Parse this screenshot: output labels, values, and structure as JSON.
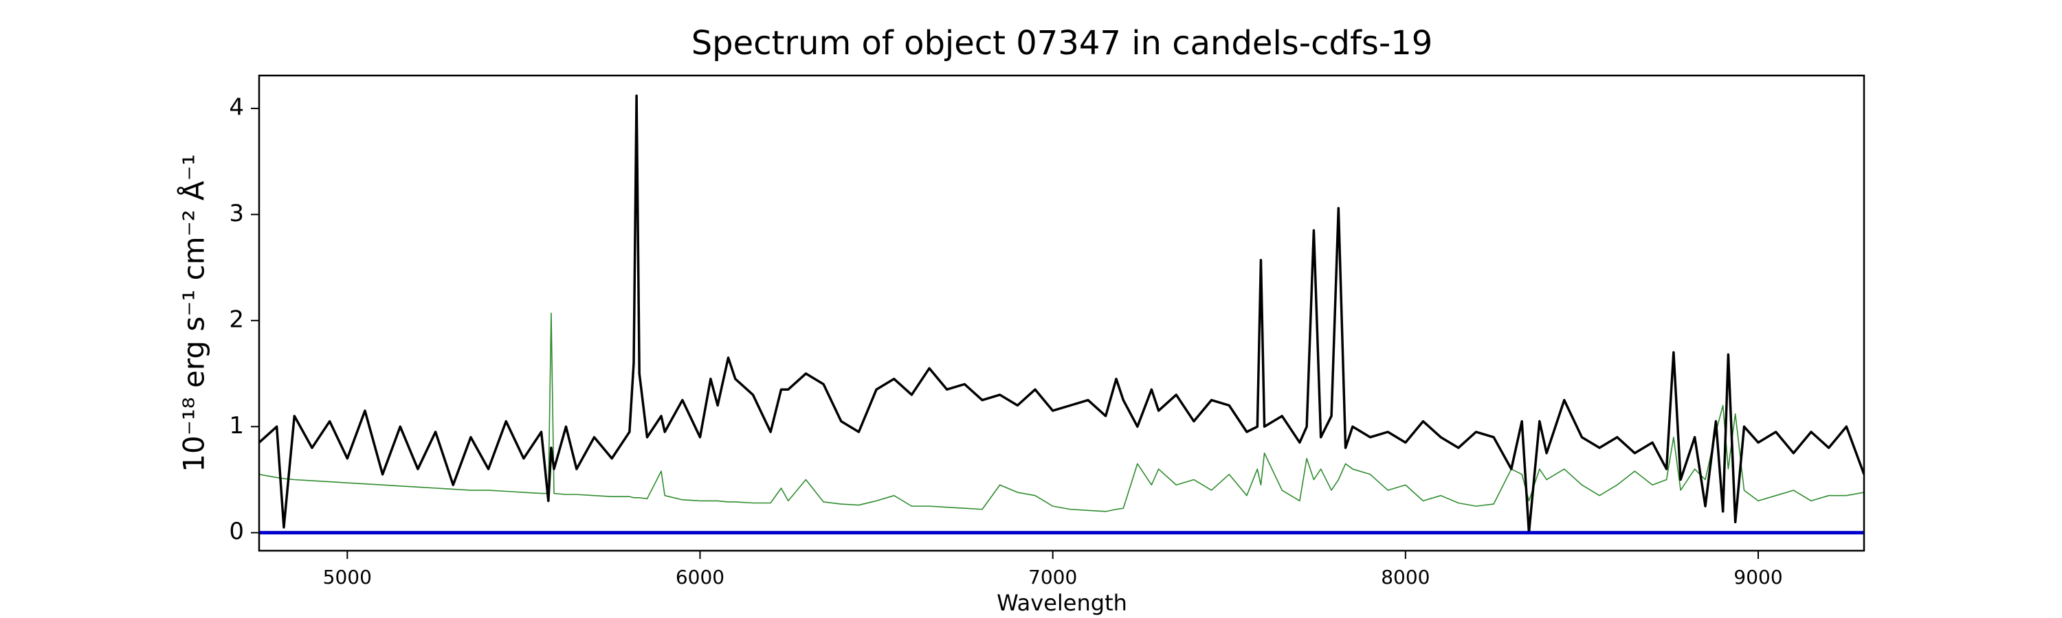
{
  "chart_data": {
    "type": "line",
    "title": "Spectrum of object 07347 in candels-cdfs-19",
    "xlabel": "Wavelength",
    "ylabel": "10⁻¹⁸ erg s⁻¹ cm⁻² Å⁻¹",
    "x": [
      4750,
      4800,
      4820,
      4850,
      4900,
      4950,
      5000,
      5050,
      5100,
      5150,
      5200,
      5250,
      5300,
      5350,
      5400,
      5450,
      5500,
      5550,
      5570,
      5578,
      5586,
      5620,
      5650,
      5700,
      5750,
      5800,
      5812,
      5820,
      5828,
      5850,
      5890,
      5900,
      5950,
      6000,
      6030,
      6050,
      6080,
      6100,
      6150,
      6200,
      6230,
      6250,
      6300,
      6350,
      6400,
      6450,
      6500,
      6550,
      6600,
      6650,
      6700,
      6750,
      6800,
      6850,
      6900,
      6950,
      7000,
      7050,
      7100,
      7150,
      7180,
      7200,
      7240,
      7280,
      7300,
      7350,
      7400,
      7450,
      7500,
      7550,
      7580,
      7590,
      7600,
      7650,
      7700,
      7720,
      7740,
      7760,
      7790,
      7810,
      7830,
      7850,
      7900,
      7950,
      8000,
      8050,
      8100,
      8150,
      8200,
      8250,
      8300,
      8330,
      8350,
      8380,
      8400,
      8450,
      8500,
      8550,
      8600,
      8650,
      8700,
      8740,
      8760,
      8780,
      8820,
      8850,
      8880,
      8900,
      8915,
      8935,
      8960,
      9000,
      9050,
      9100,
      9150,
      9200,
      9250,
      9300
    ],
    "series": [
      {
        "color": "#2e8b2e",
        "linewidth": 1.6,
        "values": [
          0.55,
          0.52,
          0.51,
          0.5,
          0.49,
          0.48,
          0.47,
          0.46,
          0.45,
          0.44,
          0.43,
          0.42,
          0.41,
          0.4,
          0.4,
          0.39,
          0.38,
          0.37,
          0.37,
          2.07,
          0.37,
          0.36,
          0.36,
          0.35,
          0.34,
          0.34,
          0.33,
          0.33,
          0.33,
          0.32,
          0.58,
          0.35,
          0.31,
          0.3,
          0.3,
          0.3,
          0.29,
          0.29,
          0.28,
          0.28,
          0.42,
          0.3,
          0.5,
          0.29,
          0.27,
          0.26,
          0.3,
          0.35,
          0.25,
          0.25,
          0.24,
          0.23,
          0.22,
          0.45,
          0.38,
          0.35,
          0.25,
          0.22,
          0.21,
          0.2,
          0.22,
          0.23,
          0.65,
          0.45,
          0.6,
          0.45,
          0.5,
          0.4,
          0.55,
          0.35,
          0.6,
          0.45,
          0.75,
          0.4,
          0.3,
          0.7,
          0.5,
          0.6,
          0.4,
          0.5,
          0.65,
          0.6,
          0.55,
          0.4,
          0.45,
          0.3,
          0.35,
          0.28,
          0.25,
          0.27,
          0.6,
          0.55,
          0.3,
          0.6,
          0.5,
          0.6,
          0.45,
          0.35,
          0.45,
          0.58,
          0.45,
          0.5,
          0.9,
          0.4,
          0.6,
          0.5,
          0.95,
          1.2,
          0.6,
          1.12,
          0.4,
          0.3,
          0.35,
          0.4,
          0.3,
          0.35,
          0.35,
          0.38
        ]
      },
      {
        "color": "#000000",
        "linewidth": 3.5,
        "values": [
          0.85,
          1.0,
          0.05,
          1.1,
          0.8,
          1.05,
          0.7,
          1.15,
          0.55,
          1.0,
          0.6,
          0.95,
          0.45,
          0.9,
          0.6,
          1.05,
          0.7,
          0.95,
          0.3,
          0.8,
          0.6,
          1.0,
          0.6,
          0.9,
          0.7,
          0.95,
          1.6,
          4.12,
          1.5,
          0.9,
          1.1,
          0.95,
          1.25,
          0.9,
          1.45,
          1.2,
          1.65,
          1.45,
          1.3,
          0.95,
          1.35,
          1.35,
          1.5,
          1.4,
          1.05,
          0.95,
          1.35,
          1.45,
          1.3,
          1.55,
          1.35,
          1.4,
          1.25,
          1.3,
          1.2,
          1.35,
          1.15,
          1.2,
          1.25,
          1.1,
          1.45,
          1.25,
          1.0,
          1.35,
          1.15,
          1.3,
          1.05,
          1.25,
          1.2,
          0.95,
          1.0,
          2.57,
          1.0,
          1.1,
          0.85,
          1.0,
          2.85,
          0.9,
          1.1,
          3.06,
          0.8,
          1.0,
          0.9,
          0.95,
          0.85,
          1.05,
          0.9,
          0.8,
          0.95,
          0.9,
          0.6,
          1.05,
          0.0,
          1.05,
          0.75,
          1.25,
          0.9,
          0.8,
          0.9,
          0.75,
          0.85,
          0.6,
          1.7,
          0.5,
          0.9,
          0.25,
          1.05,
          0.2,
          1.68,
          0.1,
          1.0,
          0.85,
          0.95,
          0.75,
          0.95,
          0.8,
          1.0,
          0.55
        ]
      },
      {
        "color": "#0000cc",
        "linewidth": 5,
        "x": [
          4750,
          9300
        ],
        "values": [
          0,
          0
        ]
      }
    ],
    "xlim": [
      4750,
      9300
    ],
    "ylim": [
      -0.17,
      4.31
    ],
    "xticks": [
      5000,
      6000,
      7000,
      8000,
      9000
    ],
    "yticks": [
      0,
      1,
      2,
      3,
      4
    ]
  }
}
